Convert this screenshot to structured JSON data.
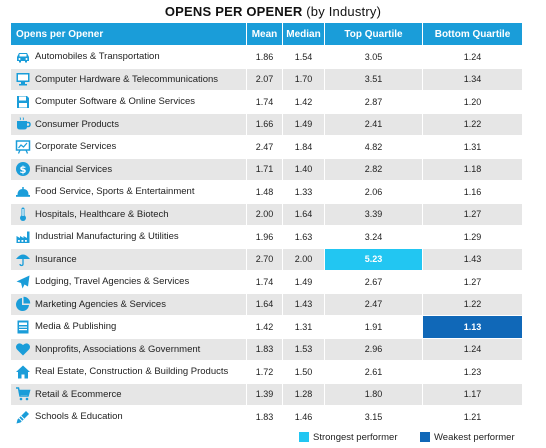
{
  "title": "OPENS PER OPENER",
  "subtitle": "(by Industry)",
  "headers": [
    "Opens per Opener",
    "Mean",
    "Median",
    "Top Quartile",
    "Bottom Quartile"
  ],
  "colors": {
    "header": "#1a9dd9",
    "strongest": "#22c6f2",
    "weakest": "#1068b8",
    "icon": "#1a9dd9",
    "row_alt": "#e6e6e6"
  },
  "rows": [
    {
      "icon": "car-icon",
      "name": "Automobiles & Transportation",
      "mean": "1.86",
      "median": "1.54",
      "top": "3.05",
      "bottom": "1.24"
    },
    {
      "icon": "computer-icon",
      "name": "Computer Hardware & Telecommunications",
      "mean": "2.07",
      "median": "1.70",
      "top": "3.51",
      "bottom": "1.34"
    },
    {
      "icon": "floppy-disk-icon",
      "name": "Computer Software & Online Services",
      "mean": "1.74",
      "median": "1.42",
      "top": "2.87",
      "bottom": "1.20"
    },
    {
      "icon": "coffee-cup-icon",
      "name": "Consumer Products",
      "mean": "1.66",
      "median": "1.49",
      "top": "2.41",
      "bottom": "1.22"
    },
    {
      "icon": "presentation-board-icon",
      "name": "Corporate Services",
      "mean": "2.47",
      "median": "1.84",
      "top": "4.82",
      "bottom": "1.31"
    },
    {
      "icon": "dollar-icon",
      "name": "Financial Services",
      "mean": "1.71",
      "median": "1.40",
      "top": "2.82",
      "bottom": "1.18"
    },
    {
      "icon": "food-tray-icon",
      "name": "Food Service, Sports & Entertainment",
      "mean": "1.48",
      "median": "1.33",
      "top": "2.06",
      "bottom": "1.16"
    },
    {
      "icon": "thermometer-icon",
      "name": "Hospitals, Healthcare & Biotech",
      "mean": "2.00",
      "median": "1.64",
      "top": "3.39",
      "bottom": "1.27"
    },
    {
      "icon": "factory-icon",
      "name": "Industrial Manufacturing & Utilities",
      "mean": "1.96",
      "median": "1.63",
      "top": "3.24",
      "bottom": "1.29"
    },
    {
      "icon": "umbrella-icon",
      "name": "Insurance",
      "mean": "2.70",
      "median": "2.00",
      "top": "5.23",
      "bottom": "1.43",
      "highlight": "top"
    },
    {
      "icon": "airplane-icon",
      "name": "Lodging, Travel Agencies & Services",
      "mean": "1.74",
      "median": "1.49",
      "top": "2.67",
      "bottom": "1.27"
    },
    {
      "icon": "pie-chart-icon",
      "name": "Marketing Agencies & Services",
      "mean": "1.64",
      "median": "1.43",
      "top": "2.47",
      "bottom": "1.22"
    },
    {
      "icon": "document-icon",
      "name": "Media & Publishing",
      "mean": "1.42",
      "median": "1.31",
      "top": "1.91",
      "bottom": "1.13",
      "highlight": "bottom"
    },
    {
      "icon": "heart-icon",
      "name": "Nonprofits, Associations & Government",
      "mean": "1.83",
      "median": "1.53",
      "top": "2.96",
      "bottom": "1.24"
    },
    {
      "icon": "house-icon",
      "name": "Real Estate, Construction & Building Products",
      "mean": "1.72",
      "median": "1.50",
      "top": "2.61",
      "bottom": "1.23"
    },
    {
      "icon": "shopping-cart-icon",
      "name": "Retail & Ecommerce",
      "mean": "1.39",
      "median": "1.28",
      "top": "1.80",
      "bottom": "1.17"
    },
    {
      "icon": "pencil-icon",
      "name": "Schools & Education",
      "mean": "1.83",
      "median": "1.46",
      "top": "3.15",
      "bottom": "1.21"
    }
  ],
  "legend": {
    "strongest": "Strongest performer",
    "weakest": "Weakest performer"
  }
}
